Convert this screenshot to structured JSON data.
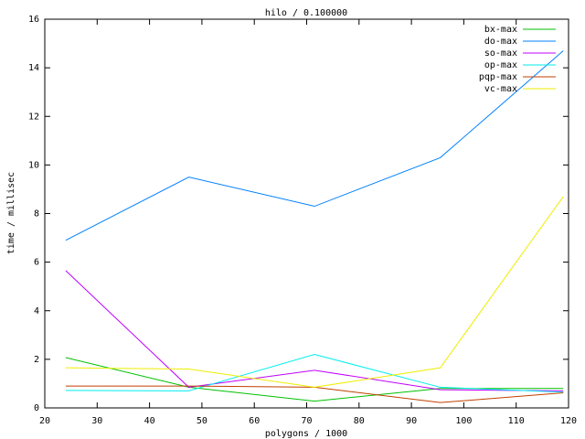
{
  "chart_data": {
    "type": "line",
    "title": "hilo / 0.100000",
    "x_label": "polygons / 1000",
    "y_label": "time / millisec",
    "x": [
      24,
      47.5,
      71.5,
      95.5,
      119
    ],
    "series": [
      {
        "name": "bx-max",
        "color": "#00c000",
        "values": [
          2.07,
          0.85,
          0.28,
          0.8,
          0.8
        ]
      },
      {
        "name": "do-max",
        "color": "#0080ff",
        "values": [
          6.9,
          9.5,
          8.3,
          10.3,
          14.7
        ]
      },
      {
        "name": "so-max",
        "color": "#c000ff",
        "values": [
          5.65,
          0.85,
          1.55,
          0.75,
          0.7
        ]
      },
      {
        "name": "op-max",
        "color": "#00eeee",
        "values": [
          0.72,
          0.7,
          2.2,
          0.85,
          0.65
        ]
      },
      {
        "name": "pqp-max",
        "color": "#c04000",
        "values": [
          0.9,
          0.9,
          0.85,
          0.22,
          0.62
        ]
      },
      {
        "name": "vc-max",
        "color": "#eeee00",
        "values": [
          1.65,
          1.6,
          0.85,
          1.65,
          8.7
        ]
      }
    ],
    "xlim": [
      20,
      120
    ],
    "xticks": [
      20,
      30,
      40,
      50,
      60,
      70,
      80,
      90,
      100,
      110,
      120
    ],
    "ylim": [
      0,
      16
    ],
    "yticks": [
      0,
      2,
      4,
      6,
      8,
      10,
      12,
      14,
      16
    ],
    "legend": "top-right",
    "grid": false
  }
}
